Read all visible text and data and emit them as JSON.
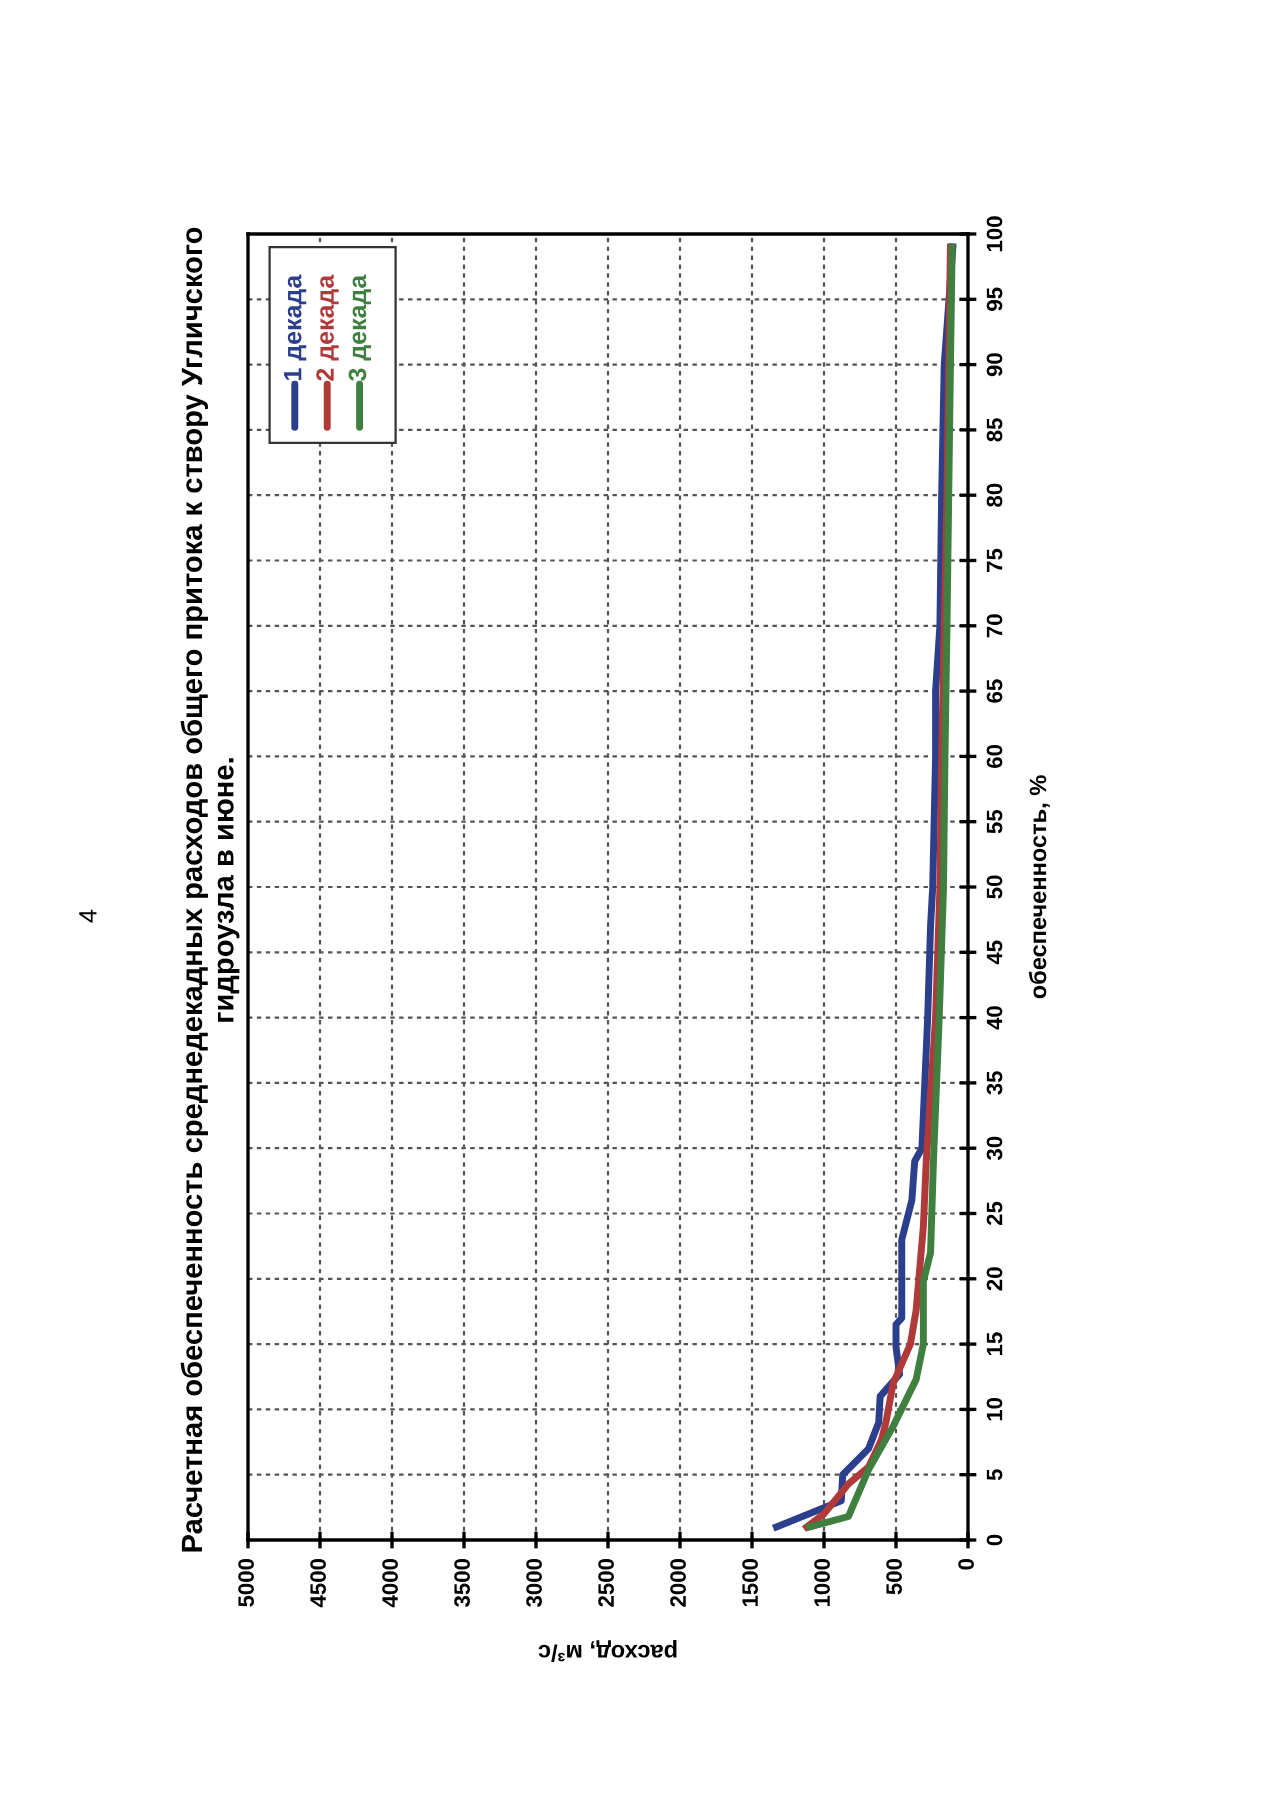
{
  "chart_data": {
    "type": "line",
    "title": "Расчетная обеспеченность среднедекадных расходов общего притока к створу Угличского\nгидроузла в июне.",
    "xlabel": "расход, м³/с",
    "ylabel": "обеспеченность, %",
    "annotations": [
      "4"
    ],
    "xlim": [
      5000,
      0
    ],
    "xticks": [
      0,
      500,
      1000,
      1500,
      2000,
      2500,
      3000,
      3500,
      4000,
      4500,
      5000
    ],
    "ylim": [
      0,
      100
    ],
    "yticks": [
      0,
      5,
      10,
      15,
      20,
      25,
      30,
      35,
      40,
      45,
      50,
      55,
      60,
      65,
      70,
      75,
      80,
      85,
      90,
      95,
      100
    ],
    "grid": true,
    "legend": "top left",
    "marker": "none",
    "line_style": "solid",
    "series": [
      {
        "name": "1 декада",
        "color": "#2b3f8c",
        "values": [
          1,
          3,
          5,
          7,
          9,
          11,
          12.7,
          14.8,
          16.5,
          17,
          23,
          26,
          29,
          30,
          40,
          47,
          50,
          60,
          65,
          70,
          80,
          90,
          99
        ],
        "x": [
          1330,
          880,
          870,
          690,
          620,
          610,
          475,
          500,
          500,
          460,
          460,
          390,
          370,
          320,
          280,
          260,
          245,
          225,
          225,
          195,
          183,
          165,
          105
        ]
      },
      {
        "name": "2 декада",
        "color": "#b03a3a",
        "values": [
          1,
          2,
          4.3,
          5.6,
          7.7,
          9,
          12,
          15,
          17.6,
          24,
          29,
          40,
          50,
          60,
          70,
          80,
          90,
          99
        ],
        "x": [
          1120,
          1000,
          830,
          690,
          600,
          570,
          520,
          400,
          360,
          310,
          290,
          225,
          195,
          183,
          165,
          146,
          134,
          122
        ]
      },
      {
        "name": "3 декада",
        "color": "#3f7f3f",
        "values": [
          1,
          1.8,
          5.4,
          8.7,
          12.3,
          15,
          19.8,
          22,
          29,
          40,
          50,
          60,
          70,
          80,
          90,
          99
        ],
        "x": [
          1100,
          830,
          690,
          520,
          360,
          310,
          310,
          260,
          240,
          200,
          170,
          160,
          146,
          134,
          122,
          110
        ]
      }
    ]
  }
}
